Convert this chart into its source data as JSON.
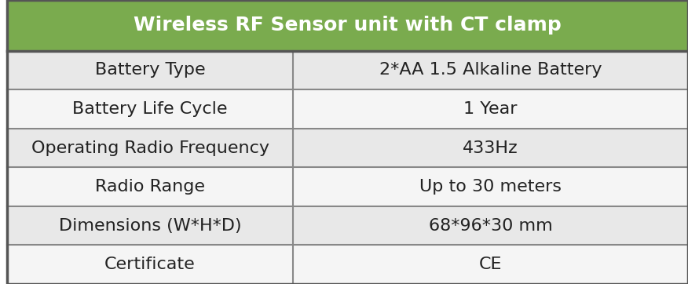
{
  "title": "Wireless RF Sensor unit with CT clamp",
  "title_bg_color": "#7aab4e",
  "title_text_color": "#ffffff",
  "header_fontsize": 18,
  "row_fontsize": 16,
  "rows": [
    [
      "Battery Type",
      "2*AA 1.5 Alkaline Battery"
    ],
    [
      "Battery Life Cycle",
      "1 Year"
    ],
    [
      "Operating Radio Frequency",
      "433Hz"
    ],
    [
      "Radio Range",
      "Up to 30 meters"
    ],
    [
      "Dimensions (W*H*D)",
      "68*96*30 mm"
    ],
    [
      "Certificate",
      "CE"
    ]
  ],
  "col_split": 0.42,
  "row_colors": [
    "#e8e8e8",
    "#f5f5f5"
  ],
  "border_color": "#888888",
  "text_color": "#222222",
  "bg_color": "#ffffff",
  "outer_border_color": "#555555",
  "outer_border_lw": 2.5,
  "inner_border_lw": 1.5
}
